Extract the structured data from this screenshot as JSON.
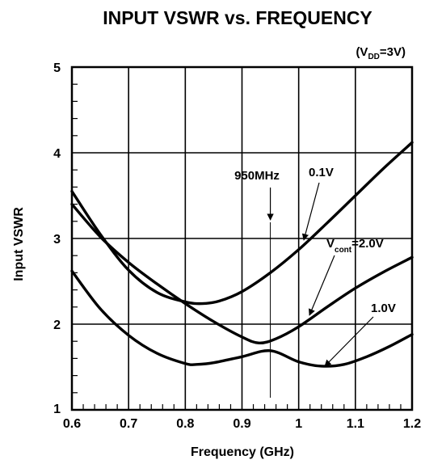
{
  "chart_data": {
    "type": "line",
    "title": "INPUT VSWR vs. FREQUENCY",
    "condition": {
      "prefix": "(V",
      "sub": "DD",
      "suffix": "=3V)"
    },
    "xlabel": "Frequency (GHz)",
    "ylabel": "Input VSWR",
    "xlim": [
      0.6,
      1.2
    ],
    "ylim": [
      1,
      5
    ],
    "xticks": [
      "0.6",
      "0.7",
      "0.8",
      "0.9",
      "1",
      "1.1",
      "1.2"
    ],
    "xtick_values": [
      0.6,
      0.7,
      0.8,
      0.9,
      1.0,
      1.1,
      1.2
    ],
    "yticks": [
      "1",
      "2",
      "3",
      "4",
      "5"
    ],
    "ytick_values": [
      1,
      2,
      3,
      4,
      5
    ],
    "grid": true,
    "series": [
      {
        "name": "0.1V",
        "x": [
          0.6,
          0.65,
          0.7,
          0.75,
          0.8,
          0.83,
          0.86,
          0.9,
          0.95,
          1.0,
          1.05,
          1.1,
          1.15,
          1.2
        ],
        "y": [
          3.55,
          3.05,
          2.63,
          2.37,
          2.26,
          2.24,
          2.27,
          2.38,
          2.6,
          2.87,
          3.18,
          3.5,
          3.82,
          4.12
        ]
      },
      {
        "name": "2.0V",
        "x": [
          0.6,
          0.65,
          0.7,
          0.75,
          0.8,
          0.85,
          0.9,
          0.93,
          0.96,
          1.0,
          1.05,
          1.1,
          1.15,
          1.2
        ],
        "y": [
          3.4,
          3.02,
          2.72,
          2.47,
          2.24,
          2.03,
          1.85,
          1.78,
          1.83,
          1.97,
          2.2,
          2.42,
          2.61,
          2.78
        ]
      },
      {
        "name": "1.0V",
        "x": [
          0.6,
          0.65,
          0.7,
          0.75,
          0.8,
          0.82,
          0.85,
          0.9,
          0.95,
          1.0,
          1.04,
          1.08,
          1.12,
          1.16,
          1.2
        ],
        "y": [
          2.62,
          2.18,
          1.87,
          1.66,
          1.54,
          1.53,
          1.55,
          1.62,
          1.69,
          1.56,
          1.51,
          1.53,
          1.62,
          1.74,
          1.88
        ]
      }
    ],
    "annotations": {
      "marker_label": "950MHz",
      "marker_x": 0.95,
      "label_01": "0.1V",
      "label_10": "1.0V",
      "label_20": {
        "prefix": "V",
        "sub": "cont",
        "suffix": "=2.0V"
      }
    }
  }
}
